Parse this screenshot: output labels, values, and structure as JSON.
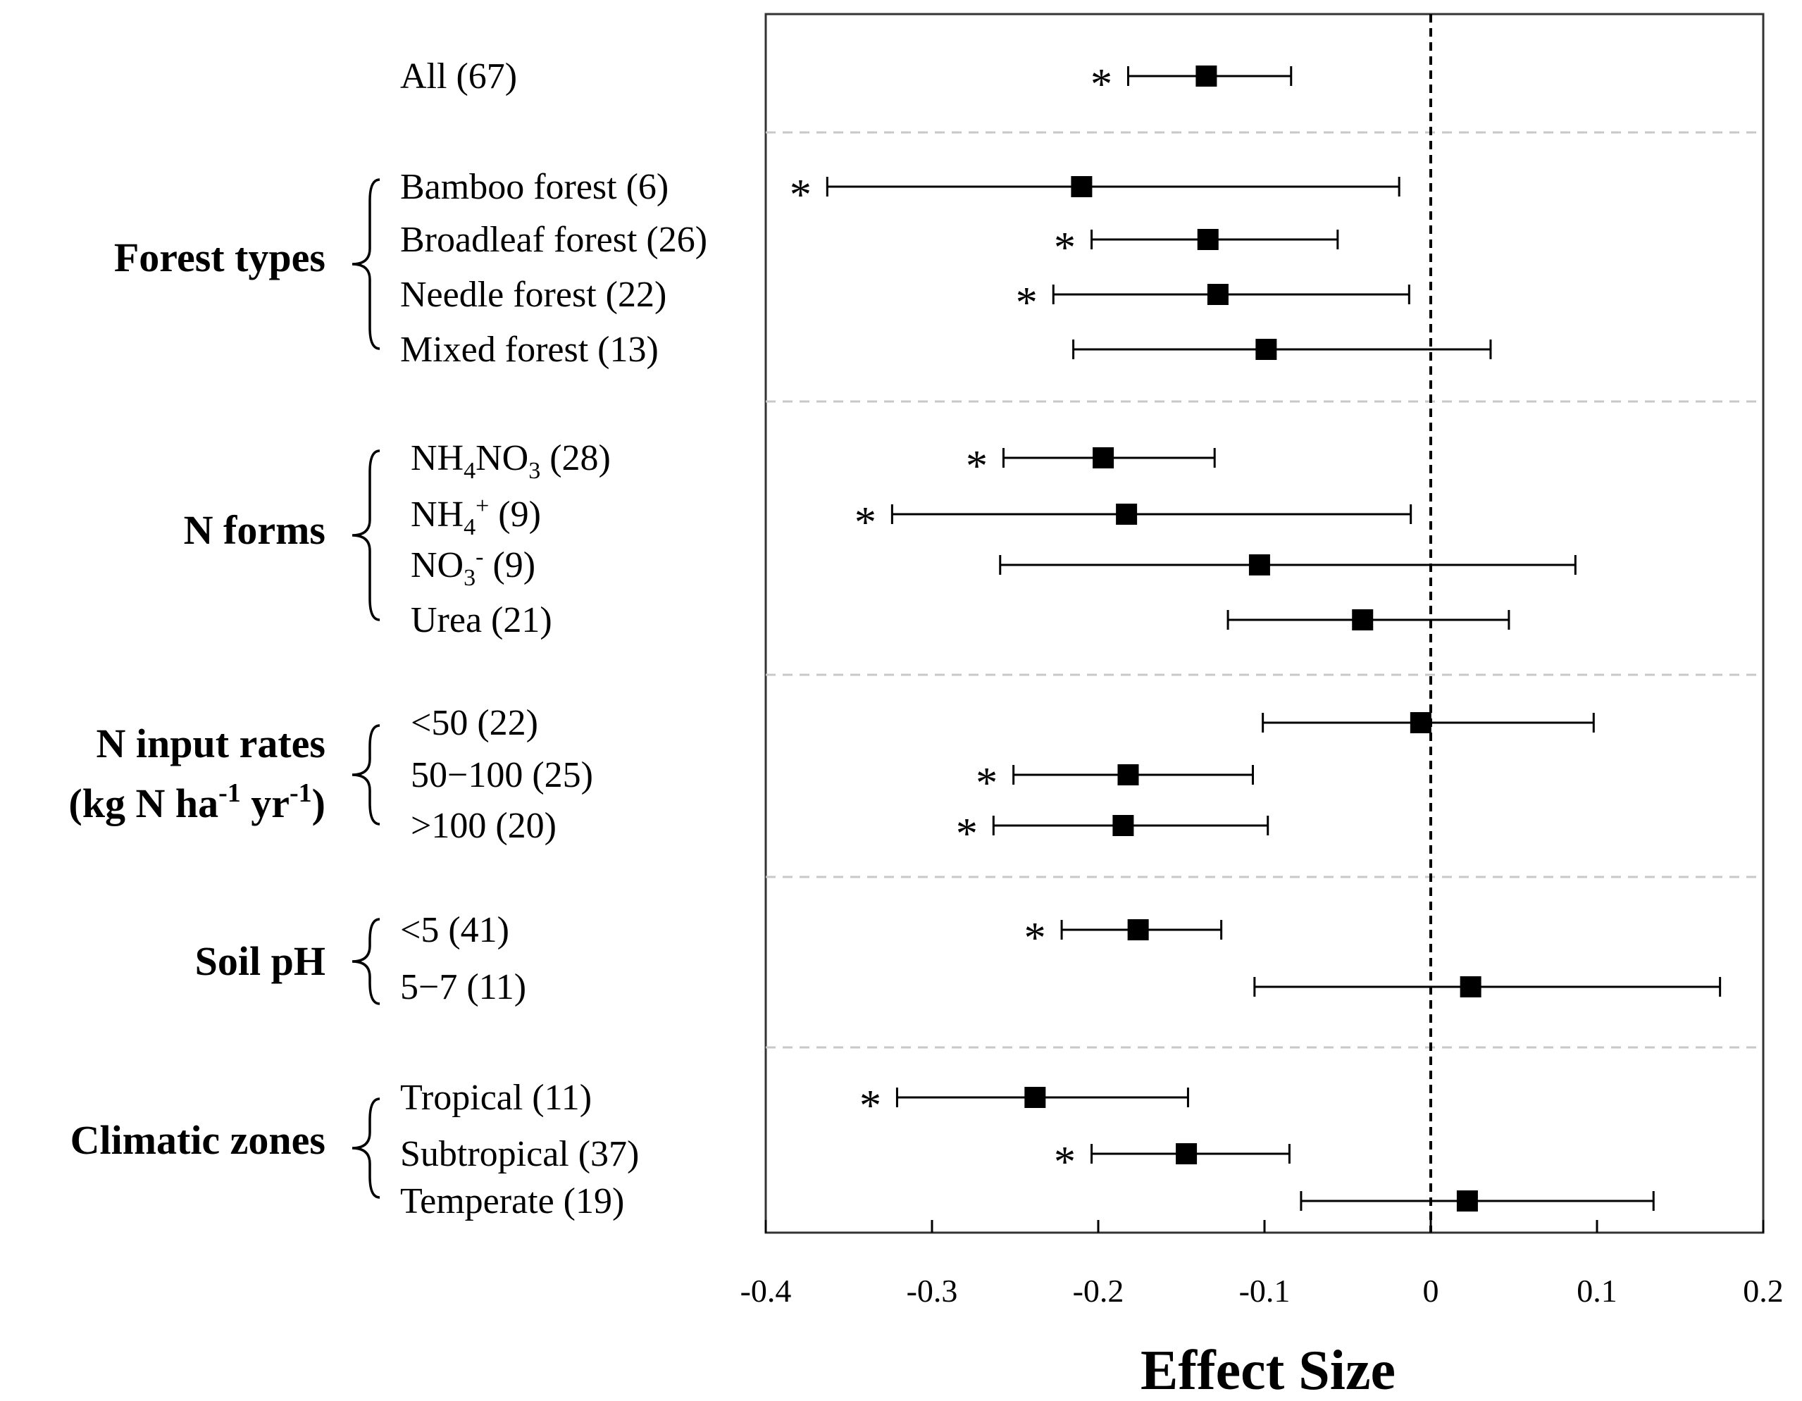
{
  "chart_data": {
    "type": "forest",
    "xlabel": "Effect Size",
    "xlim": [
      -0.4,
      0.2
    ],
    "xticks": [
      -0.4,
      -0.3,
      -0.2,
      -0.1,
      0,
      0.1,
      0.2
    ],
    "xtick_labels": [
      "-0.4",
      "-0.3",
      "-0.2",
      "-0.1",
      "0",
      "0.1",
      "0.2"
    ],
    "reference_line": 0,
    "groups": [
      {
        "label": "",
        "rows": [
          {
            "label": "All (67)",
            "mean": -0.135,
            "lower": -0.182,
            "upper": -0.084,
            "significant": true,
            "sig_label": "*"
          }
        ]
      },
      {
        "label": "Forest types",
        "rows": [
          {
            "label": "Bamboo forest (6)",
            "mean": -0.21,
            "lower": -0.363,
            "upper": -0.019,
            "significant": true,
            "sig_label": "*"
          },
          {
            "label": "Broadleaf forest (26)",
            "mean": -0.134,
            "lower": -0.204,
            "upper": -0.056,
            "significant": true,
            "sig_label": "*"
          },
          {
            "label": "Needle forest (22)",
            "mean": -0.128,
            "lower": -0.227,
            "upper": -0.013,
            "significant": true,
            "sig_label": "*"
          },
          {
            "label": "Mixed forest (13)",
            "mean": -0.099,
            "lower": -0.215,
            "upper": 0.036,
            "significant": false,
            "sig_label": ""
          }
        ]
      },
      {
        "label": "N forms",
        "rows": [
          {
            "label": "NH4NO3 (28)",
            "label_main": "NH",
            "label_sub1": "4",
            "label_mid": "NO",
            "label_sub2": "3",
            "label_tail": " (28)",
            "mean": -0.197,
            "lower": -0.257,
            "upper": -0.13,
            "significant": true,
            "sig_label": "*"
          },
          {
            "label": "NH4+ (9)",
            "label_main": "NH",
            "label_sub1": "4",
            "label_sup": "+",
            "label_tail": " (9)",
            "mean": -0.183,
            "lower": -0.324,
            "upper": -0.012,
            "significant": true,
            "sig_label": "*"
          },
          {
            "label": "NO3- (9)",
            "label_main": "NO",
            "label_sub1": "3",
            "label_sup": "-",
            "label_tail": " (9)",
            "mean": -0.103,
            "lower": -0.259,
            "upper": 0.087,
            "significant": false,
            "sig_label": ""
          },
          {
            "label": "Urea (21)",
            "mean": -0.041,
            "lower": -0.122,
            "upper": 0.047,
            "significant": false,
            "sig_label": ""
          }
        ]
      },
      {
        "label": "N input rates",
        "label_line2_parts": [
          "(kg N ha",
          "-1",
          " yr",
          "-1",
          ")"
        ],
        "rows": [
          {
            "label": "<50 (22)",
            "mean": -0.006,
            "lower": -0.101,
            "upper": 0.098,
            "significant": false,
            "sig_label": ""
          },
          {
            "label": "50−100 (25)",
            "mean": -0.182,
            "lower": -0.251,
            "upper": -0.107,
            "significant": true,
            "sig_label": "*"
          },
          {
            "label": ">100 (20)",
            "mean": -0.185,
            "lower": -0.263,
            "upper": -0.098,
            "significant": true,
            "sig_label": "*"
          }
        ]
      },
      {
        "label": "Soil pH",
        "rows": [
          {
            "label": "<5 (41)",
            "mean": -0.176,
            "lower": -0.222,
            "upper": -0.126,
            "significant": true,
            "sig_label": "*"
          },
          {
            "label": "5−7 (11)",
            "mean": 0.024,
            "lower": -0.106,
            "upper": 0.174,
            "significant": false,
            "sig_label": ""
          }
        ]
      },
      {
        "label": "Climatic zones",
        "rows": [
          {
            "label": "Tropical (11)",
            "mean": -0.238,
            "lower": -0.321,
            "upper": -0.146,
            "significant": true,
            "sig_label": "*"
          },
          {
            "label": "Subtropical (37)",
            "mean": -0.147,
            "lower": -0.204,
            "upper": -0.085,
            "significant": true,
            "sig_label": "*"
          },
          {
            "label": "Temperate (19)",
            "mean": 0.022,
            "lower": -0.078,
            "upper": 0.134,
            "significant": false,
            "sig_label": ""
          }
        ]
      }
    ]
  }
}
